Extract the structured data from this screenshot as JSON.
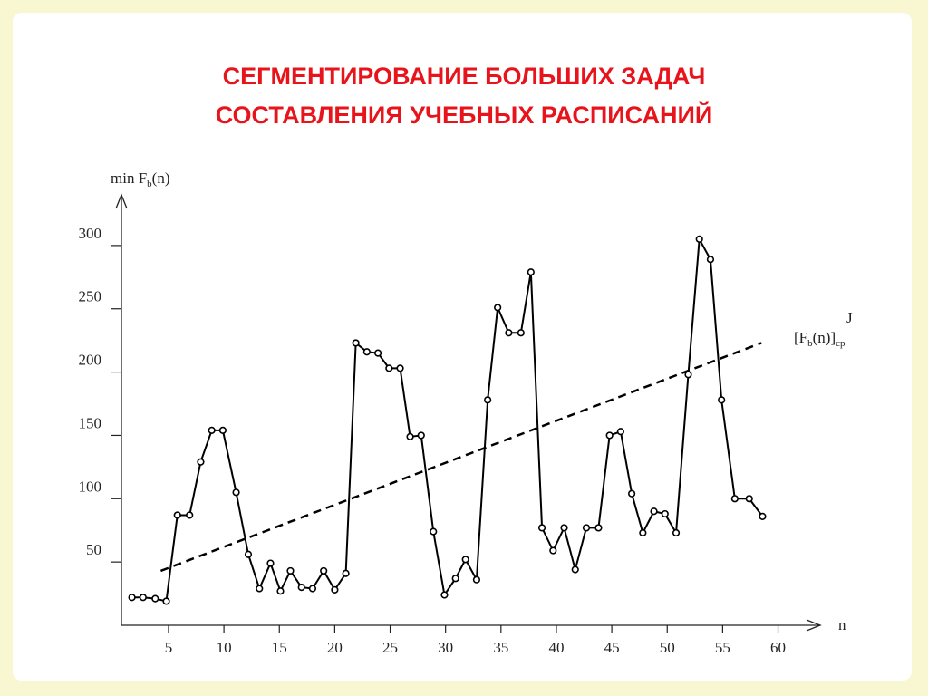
{
  "title_lines": [
    "СЕГМЕНТИРОВАНИЕ БОЛЬШИХ ЗАДАЧ",
    "СОСТАВЛЕНИЯ УЧЕБНЫХ РАСПИСАНИЙ"
  ],
  "chart_data": {
    "type": "line",
    "y_label": {
      "main": "min F",
      "sub": "b",
      "rest": "(n)"
    },
    "x_label": "n",
    "trend_label": {
      "main": "[F",
      "sub": "b",
      "rest": "(n)]",
      "sub2": "ср",
      "sup": "J"
    },
    "x": [
      1.7,
      2.7,
      3.8,
      4.8,
      5.8,
      6.9,
      7.9,
      8.9,
      9.9,
      11.1,
      12.2,
      13.2,
      14.2,
      15.1,
      16.0,
      17.0,
      18.0,
      19.0,
      20.0,
      21.0,
      21.9,
      22.9,
      23.9,
      24.9,
      25.9,
      26.8,
      27.8,
      28.9,
      29.9,
      30.9,
      31.8,
      32.8,
      33.8,
      34.7,
      35.7,
      36.8,
      37.7,
      38.7,
      39.7,
      40.7,
      41.7,
      42.7,
      43.8,
      44.8,
      45.8,
      46.8,
      47.8,
      48.8,
      49.8,
      50.8,
      51.9,
      52.9,
      53.9,
      54.9,
      56.1,
      57.4,
      58.6
    ],
    "values": [
      22,
      22,
      21,
      19,
      87,
      87,
      129,
      154,
      154,
      105,
      56,
      29,
      49,
      27,
      43,
      30,
      29,
      43,
      28,
      41,
      223,
      216,
      215,
      203,
      203,
      149,
      150,
      74,
      24,
      37,
      52,
      36,
      178,
      251,
      231,
      231,
      279,
      77,
      59,
      77,
      44,
      77,
      77,
      150,
      153,
      104,
      73,
      90,
      88,
      73,
      198,
      305,
      289,
      178,
      100,
      100,
      86
    ],
    "color": "#000000",
    "trend": {
      "x": [
        4.3,
        58.5
      ],
      "values": [
        43,
        223
      ],
      "color": "#000000",
      "style": "dashed"
    },
    "xlim": [
      0.75,
      63.8
    ],
    "xticks": [
      5,
      10,
      15,
      20,
      25,
      30,
      35,
      40,
      45,
      50,
      55,
      60
    ],
    "ylim": [
      0,
      340
    ],
    "yticks": [
      50,
      100,
      150,
      200,
      250,
      300
    ]
  }
}
